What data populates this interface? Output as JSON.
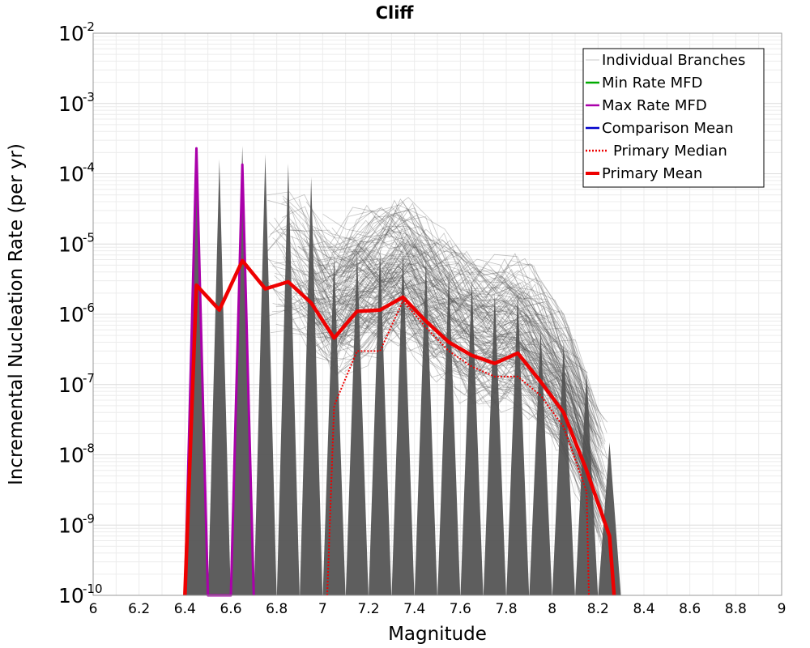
{
  "chart_data": {
    "type": "line",
    "title": "Cliff",
    "xlabel": "Magnitude",
    "ylabel": "Incremental Nucleation Rate (per yr)",
    "xlim": [
      6,
      9
    ],
    "ylim": [
      1e-10,
      0.01
    ],
    "yscale": "log",
    "grid": true,
    "legend_position": "top-right",
    "x_ticks": [
      "6",
      "6.2",
      "6.4",
      "6.6",
      "6.8",
      "7",
      "7.2",
      "7.4",
      "7.6",
      "7.8",
      "8",
      "8.2",
      "8.4",
      "8.6",
      "8.8",
      "9"
    ],
    "y_ticks": [
      {
        "base": "10",
        "exp": "-2"
      },
      {
        "base": "10",
        "exp": "-3"
      },
      {
        "base": "10",
        "exp": "-4"
      },
      {
        "base": "10",
        "exp": "-5"
      },
      {
        "base": "10",
        "exp": "-6"
      },
      {
        "base": "10",
        "exp": "-7"
      },
      {
        "base": "10",
        "exp": "-8"
      },
      {
        "base": "10",
        "exp": "-9"
      },
      {
        "base": "10",
        "exp": "-10"
      }
    ],
    "legend": [
      {
        "name": "Individual Branches",
        "color": "#c8c8c8",
        "style": "solid-thin"
      },
      {
        "name": "Min Rate MFD",
        "color": "#00aa00",
        "style": "solid"
      },
      {
        "name": "Max Rate MFD",
        "color": "#aa00aa",
        "style": "solid"
      },
      {
        "name": "Comparison Mean",
        "color": "#0000cc",
        "style": "solid"
      },
      {
        "name": "Primary Median",
        "color": "#ee0000",
        "style": "dotted"
      },
      {
        "name": "Primary Mean",
        "color": "#ee0000",
        "style": "solid-thick"
      }
    ],
    "series": [
      {
        "name": "Primary Mean",
        "color": "#ee0000",
        "x": [
          6.4,
          6.45,
          6.55,
          6.65,
          6.75,
          6.85,
          6.95,
          7.05,
          7.15,
          7.25,
          7.35,
          7.45,
          7.55,
          7.65,
          7.75,
          7.85,
          7.95,
          8.05,
          8.15,
          8.25,
          8.27
        ],
        "y": [
          1e-10,
          2.6e-06,
          1.15e-06,
          5.8e-06,
          2.3e-06,
          2.9e-06,
          1.45e-06,
          4.6e-07,
          1.1e-06,
          1.15e-06,
          1.75e-06,
          8e-07,
          4e-07,
          2.6e-07,
          2e-07,
          2.8e-07,
          1.1e-07,
          4e-08,
          6e-09,
          7e-10,
          1e-10
        ]
      },
      {
        "name": "Primary Median",
        "color": "#ee0000",
        "x": [
          7.02,
          7.05,
          7.15,
          7.25,
          7.35,
          7.45,
          7.55,
          7.65,
          7.75,
          7.85,
          7.95,
          8.05,
          8.15,
          8.16
        ],
        "y": [
          1e-10,
          5e-08,
          3e-07,
          3e-07,
          1.55e-06,
          6.5e-07,
          3e-07,
          1.8e-07,
          1.3e-07,
          1.3e-07,
          7e-08,
          2.5e-08,
          3e-09,
          1e-10
        ]
      },
      {
        "name": "Max Rate MFD",
        "color": "#aa00aa",
        "x": [
          6.4,
          6.45,
          6.5,
          6.6,
          6.65,
          6.7
        ],
        "y": [
          1e-10,
          0.00023,
          1e-10,
          1e-10,
          0.000135,
          1e-10
        ]
      }
    ],
    "branch_spikes": [
      {
        "x": 6.45,
        "peak": 0.00023
      },
      {
        "x": 6.55,
        "peak": 0.00016
      },
      {
        "x": 6.65,
        "peak": 0.00025
      },
      {
        "x": 6.75,
        "peak": 0.00019
      },
      {
        "x": 6.85,
        "peak": 0.00014
      },
      {
        "x": 6.95,
        "peak": 9e-05
      },
      {
        "x": 7.05,
        "peak": 7e-06
      },
      {
        "x": 7.15,
        "peak": 8e-06
      },
      {
        "x": 7.25,
        "peak": 8.5e-06
      },
      {
        "x": 7.35,
        "peak": 8e-06
      },
      {
        "x": 7.45,
        "peak": 6e-06
      },
      {
        "x": 7.55,
        "peak": 4e-06
      },
      {
        "x": 7.65,
        "peak": 3e-06
      },
      {
        "x": 7.75,
        "peak": 2e-06
      },
      {
        "x": 7.85,
        "peak": 2e-06
      },
      {
        "x": 7.95,
        "peak": 6e-07
      },
      {
        "x": 8.05,
        "peak": 4e-07
      },
      {
        "x": 8.15,
        "peak": 1.5e-07
      },
      {
        "x": 8.25,
        "peak": 1.5e-08
      }
    ]
  }
}
